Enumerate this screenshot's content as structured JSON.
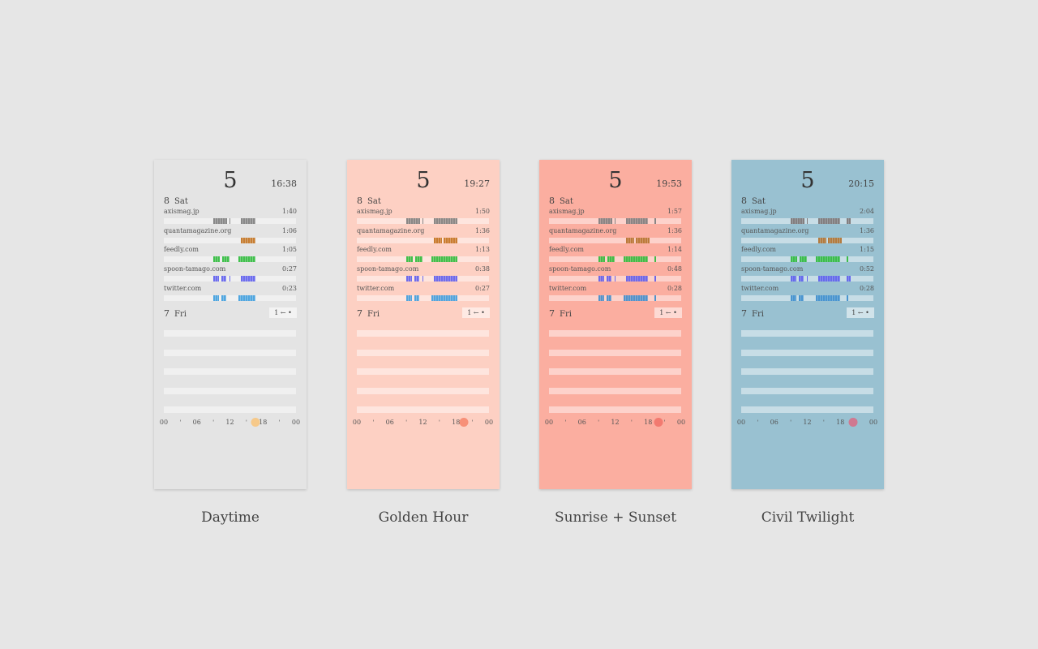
{
  "cards": [
    {
      "caption": "Daytime",
      "bg": "#e4e4e4",
      "sun_color": "#f6c98a",
      "big": "5",
      "time": "16:38",
      "sun_hour": 16.63,
      "today": {
        "num": "8",
        "day": "Sat"
      },
      "sites": [
        {
          "name": "axismag.jp",
          "dur": "1:40",
          "color": "#777777",
          "segs": [
            [
              9,
              11.5
            ],
            [
              11.9,
              12.1
            ],
            [
              14,
              16.6
            ]
          ]
        },
        {
          "name": "quantamagazine.org",
          "dur": "1:06",
          "color": "#c06a10",
          "segs": [
            [
              14,
              16.6
            ]
          ]
        },
        {
          "name": "feedly.com",
          "dur": "1:05",
          "color": "#22b830",
          "segs": [
            [
              9,
              10.2
            ],
            [
              10.6,
              12
            ],
            [
              13.5,
              16.6
            ]
          ]
        },
        {
          "name": "spoon-tamago.com",
          "dur": "0:27",
          "color": "#5555ee",
          "segs": [
            [
              9,
              10
            ],
            [
              10.5,
              11.3
            ],
            [
              11.9,
              12.1
            ],
            [
              14,
              16.6
            ]
          ]
        },
        {
          "name": "twitter.com",
          "dur": "0:23",
          "color": "#3399dd",
          "segs": [
            [
              9,
              10
            ],
            [
              10.4,
              11.3
            ],
            [
              11.9,
              12
            ],
            [
              13.5,
              16.6
            ]
          ]
        }
      ],
      "yesterday": {
        "num": "7",
        "day": "Fri"
      },
      "pager": "1 ← •"
    },
    {
      "caption": "Golden Hour",
      "bg": "#fdd0c3",
      "sun_color": "#f79078",
      "big": "5",
      "time": "19:27",
      "sun_hour": 19.45,
      "today": {
        "num": "8",
        "day": "Sat"
      },
      "sites": [
        {
          "name": "axismag.jp",
          "dur": "1:50",
          "color": "#777777",
          "segs": [
            [
              9,
              11.5
            ],
            [
              11.9,
              12.1
            ],
            [
              14,
              18.2
            ]
          ]
        },
        {
          "name": "quantamagazine.org",
          "dur": "1:36",
          "color": "#c06a10",
          "segs": [
            [
              14,
              15.5
            ],
            [
              15.7,
              18.2
            ]
          ]
        },
        {
          "name": "feedly.com",
          "dur": "1:13",
          "color": "#22b830",
          "segs": [
            [
              9,
              10.2
            ],
            [
              10.6,
              12
            ],
            [
              13.5,
              18.2
            ]
          ]
        },
        {
          "name": "spoon-tamago.com",
          "dur": "0:38",
          "color": "#5555ee",
          "segs": [
            [
              9,
              10
            ],
            [
              10.5,
              11.3
            ],
            [
              11.9,
              12.1
            ],
            [
              14,
              18.2
            ]
          ]
        },
        {
          "name": "twitter.com",
          "dur": "0:27",
          "color": "#3399dd",
          "segs": [
            [
              9,
              10
            ],
            [
              10.4,
              11.3
            ],
            [
              11.9,
              12
            ],
            [
              13.5,
              18.2
            ]
          ]
        }
      ],
      "yesterday": {
        "num": "7",
        "day": "Fri"
      },
      "pager": "1 ← •"
    },
    {
      "caption": "Sunrise + Sunset",
      "bg": "#fbaea0",
      "sun_color": "#f27a70",
      "big": "5",
      "time": "19:53",
      "sun_hour": 19.88,
      "today": {
        "num": "8",
        "day": "Sat"
      },
      "sites": [
        {
          "name": "axismag.jp",
          "dur": "1:57",
          "color": "#777777",
          "segs": [
            [
              9,
              11.5
            ],
            [
              11.9,
              12.1
            ],
            [
              14,
              18
            ],
            [
              19.2,
              19.4
            ]
          ]
        },
        {
          "name": "quantamagazine.org",
          "dur": "1:36",
          "color": "#b06a20",
          "segs": [
            [
              14,
              15.5
            ],
            [
              15.7,
              18.2
            ]
          ]
        },
        {
          "name": "feedly.com",
          "dur": "1:14",
          "color": "#22b830",
          "segs": [
            [
              9,
              10.2
            ],
            [
              10.6,
              12
            ],
            [
              13.5,
              18
            ],
            [
              19.2,
              19.4
            ]
          ]
        },
        {
          "name": "spoon-tamago.com",
          "dur": "0:48",
          "color": "#5555ee",
          "segs": [
            [
              9,
              10
            ],
            [
              10.5,
              11.3
            ],
            [
              11.9,
              12.1
            ],
            [
              14,
              18
            ],
            [
              19.2,
              19.4
            ]
          ]
        },
        {
          "name": "twitter.com",
          "dur": "0:28",
          "color": "#3388cc",
          "segs": [
            [
              9,
              10
            ],
            [
              10.4,
              11.3
            ],
            [
              11.9,
              12
            ],
            [
              13.5,
              18
            ],
            [
              19.2,
              19.4
            ]
          ]
        }
      ],
      "yesterday": {
        "num": "7",
        "day": "Fri"
      },
      "pager": "1 ← •"
    },
    {
      "caption": "Civil Twilight",
      "bg": "#99c1d1",
      "sun_color": "#d07890",
      "big": "5",
      "time": "20:15",
      "sun_hour": 20.25,
      "today": {
        "num": "8",
        "day": "Sat"
      },
      "sites": [
        {
          "name": "axismag.jp",
          "dur": "2:04",
          "color": "#776e6e",
          "segs": [
            [
              9,
              11.5
            ],
            [
              11.9,
              12.1
            ],
            [
              14,
              18
            ],
            [
              19.2,
              19.9
            ]
          ]
        },
        {
          "name": "quantamagazine.org",
          "dur": "1:36",
          "color": "#b06a20",
          "segs": [
            [
              14,
              15.5
            ],
            [
              15.7,
              18.2
            ]
          ]
        },
        {
          "name": "feedly.com",
          "dur": "1:15",
          "color": "#22b830",
          "segs": [
            [
              9,
              10.2
            ],
            [
              10.6,
              12
            ],
            [
              13.5,
              18
            ],
            [
              19.2,
              19.5
            ]
          ]
        },
        {
          "name": "spoon-tamago.com",
          "dur": "0:52",
          "color": "#5555ee",
          "segs": [
            [
              9,
              10
            ],
            [
              10.5,
              11.3
            ],
            [
              11.9,
              12.1
            ],
            [
              14,
              18
            ],
            [
              19.2,
              19.9
            ]
          ]
        },
        {
          "name": "twitter.com",
          "dur": "0:28",
          "color": "#3388cc",
          "segs": [
            [
              9,
              10
            ],
            [
              10.4,
              11.3
            ],
            [
              11.9,
              12
            ],
            [
              13.5,
              18
            ],
            [
              19.2,
              19.4
            ]
          ]
        }
      ],
      "yesterday": {
        "num": "7",
        "day": "Fri"
      },
      "pager": "1 ← •"
    }
  ],
  "axis_labels": [
    "00",
    "06",
    "12",
    "18",
    "00"
  ]
}
